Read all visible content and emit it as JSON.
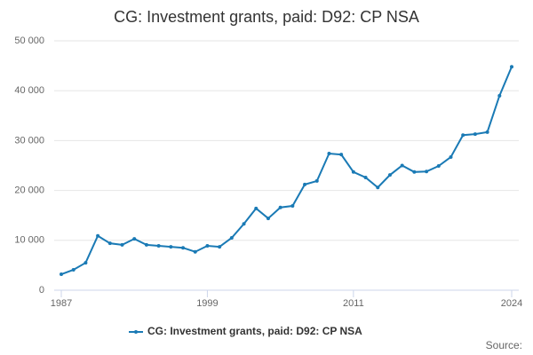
{
  "chart_data": {
    "type": "line",
    "title": "CG: Investment grants, paid: D92: CP NSA",
    "source": "Source:",
    "x": [
      1987,
      1988,
      1989,
      1990,
      1991,
      1992,
      1993,
      1994,
      1995,
      1996,
      1997,
      1998,
      1999,
      2000,
      2001,
      2002,
      2003,
      2004,
      2005,
      2006,
      2007,
      2008,
      2009,
      2010,
      2011,
      2012,
      2013,
      2014,
      2015,
      2016,
      2017,
      2018,
      2019,
      2020,
      2021,
      2022,
      2023,
      2024
    ],
    "series": [
      {
        "name": "CG: Investment grants, paid: D92: CP NSA",
        "color": "#1a7ab5",
        "values": [
          3200,
          4100,
          5500,
          10900,
          9400,
          9100,
          10300,
          9100,
          8900,
          8700,
          8500,
          7700,
          8900,
          8700,
          10500,
          13300,
          16400,
          14400,
          16600,
          16900,
          21200,
          21900,
          27400,
          27200,
          23700,
          22600,
          20600,
          23100,
          25000,
          23700,
          23800,
          24900,
          26700,
          31100,
          31300,
          31700,
          39000,
          44800
        ]
      }
    ],
    "xlim": [
      1987,
      2024
    ],
    "xticks": [
      1987,
      1999,
      2011,
      2024
    ],
    "ylim": [
      0,
      50000
    ],
    "yticks": [
      0,
      {
        "value": 10000,
        "label": "10 000"
      },
      {
        "value": 20000,
        "label": "20 000"
      },
      {
        "value": 30000,
        "label": "30 000"
      },
      {
        "value": 40000,
        "label": "40 000"
      },
      {
        "value": 50000,
        "label": "50 000"
      }
    ],
    "grid": true,
    "legend": "bottom"
  }
}
